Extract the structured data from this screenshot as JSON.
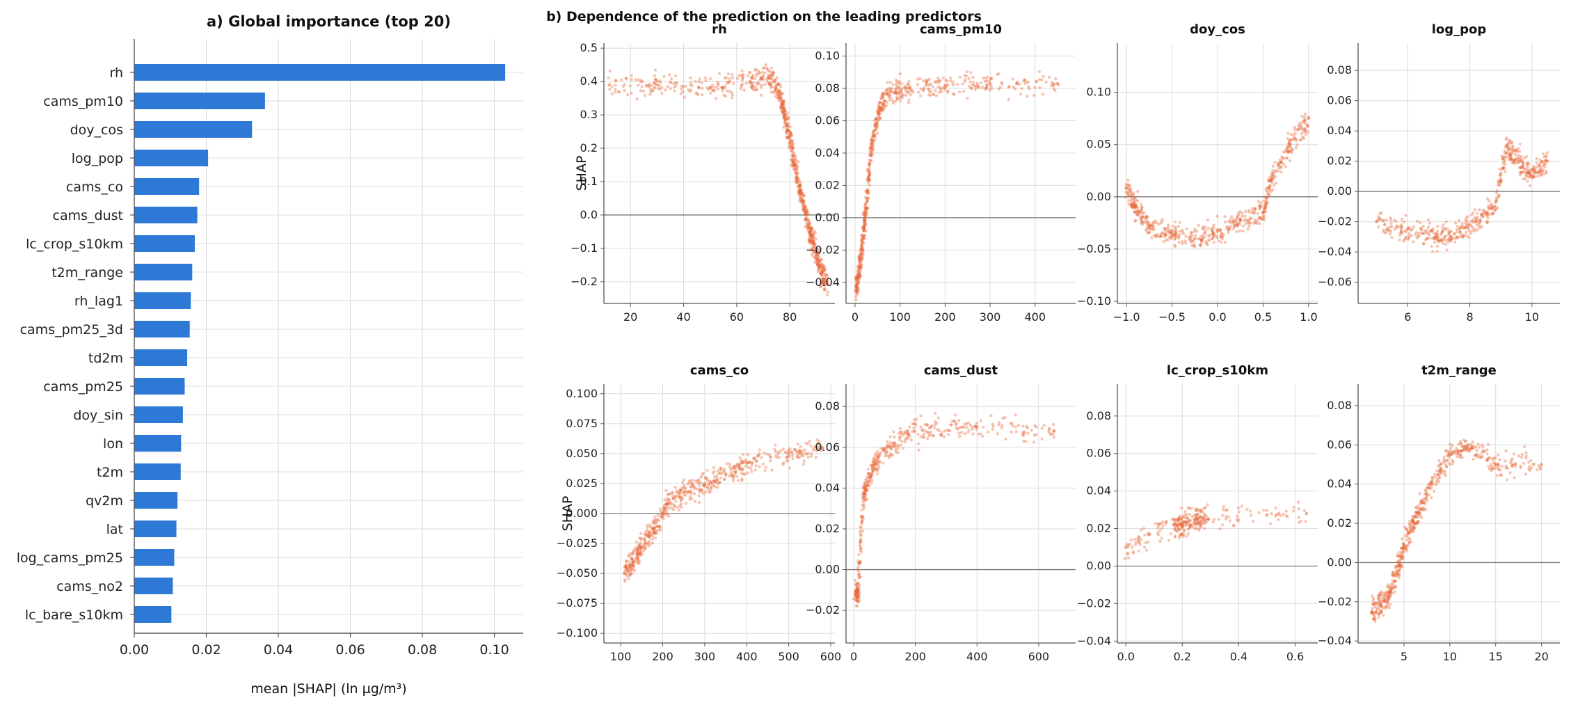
{
  "colors": {
    "bar": "#2e78d6",
    "scatter": "#e8683a",
    "grid": "#dcdcdc",
    "zero_line": "#777777",
    "spine": "#555555"
  },
  "chart_data": [
    {
      "id": "a",
      "type": "bar",
      "orientation": "horizontal",
      "title": "a) Global importance (top 20)",
      "xlabel": "mean |SHAP| (ln µg/m³)",
      "ylabel": "",
      "xlim": [
        0,
        0.108
      ],
      "xticks": [
        0.0,
        0.02,
        0.04,
        0.06,
        0.08,
        0.1
      ],
      "xtick_labels": [
        "0.00",
        "0.02",
        "0.04",
        "0.06",
        "0.08",
        "0.10"
      ],
      "grid": true,
      "categories": [
        "rh",
        "cams_pm10",
        "doy_cos",
        "log_pop",
        "cams_co",
        "cams_dust",
        "lc_crop_s10km",
        "t2m_range",
        "rh_lag1",
        "cams_pm25_3d",
        "td2m",
        "cams_pm25",
        "doy_sin",
        "lon",
        "t2m",
        "qv2m",
        "lat",
        "log_cams_pm25",
        "cams_no2",
        "lc_bare_s10km"
      ],
      "values": [
        0.103,
        0.0363,
        0.0327,
        0.0205,
        0.018,
        0.0175,
        0.0168,
        0.0161,
        0.0157,
        0.0154,
        0.0147,
        0.014,
        0.0135,
        0.013,
        0.0129,
        0.012,
        0.0117,
        0.0111,
        0.0107,
        0.0103
      ]
    },
    {
      "id": "b",
      "type": "scatter",
      "title": "b) Dependence of the prediction on the leading predictors",
      "ylabel": "SHAP",
      "grid": true,
      "subplots": [
        {
          "name": "rh",
          "xlim": [
            10,
            97
          ],
          "ylim": [
            -0.265,
            0.515
          ],
          "xticks": [
            20,
            40,
            60,
            80
          ],
          "xtick_labels": [
            "20",
            "40",
            "60",
            "80"
          ],
          "yticks": [
            -0.2,
            -0.1,
            0.0,
            0.1,
            0.2,
            0.3,
            0.4,
            0.5
          ],
          "ytick_labels": [
            "−0.2",
            "−0.1",
            "0.0",
            "0.1",
            "0.2",
            "0.3",
            "0.4",
            "0.5"
          ],
          "show_ylabel": true,
          "trend": [
            [
              12,
              0.39
            ],
            [
              30,
              0.39
            ],
            [
              50,
              0.38
            ],
            [
              65,
              0.4
            ],
            [
              72,
              0.41
            ],
            [
              76,
              0.37
            ],
            [
              78,
              0.3
            ],
            [
              80,
              0.23
            ],
            [
              82,
              0.15
            ],
            [
              84,
              0.07
            ],
            [
              86,
              0.0
            ],
            [
              88,
              -0.06
            ],
            [
              90,
              -0.12
            ],
            [
              92,
              -0.17
            ],
            [
              94,
              -0.2
            ]
          ]
        },
        {
          "name": "cams_pm10",
          "xlim": [
            -20,
            490
          ],
          "ylim": [
            -0.053,
            0.108
          ],
          "xticks": [
            0,
            100,
            200,
            300,
            400
          ],
          "xtick_labels": [
            "0",
            "100",
            "200",
            "300",
            "400"
          ],
          "yticks": [
            -0.04,
            -0.02,
            0.0,
            0.02,
            0.04,
            0.06,
            0.08,
            0.1
          ],
          "ytick_labels": [
            "−0.04",
            "−0.02",
            "0.00",
            "0.02",
            "0.04",
            "0.06",
            "0.08",
            "0.10"
          ],
          "show_ylabel": false,
          "trend": [
            [
              2,
              -0.045
            ],
            [
              8,
              -0.035
            ],
            [
              15,
              -0.02
            ],
            [
              22,
              0.0
            ],
            [
              30,
              0.025
            ],
            [
              40,
              0.05
            ],
            [
              55,
              0.068
            ],
            [
              80,
              0.078
            ],
            [
              120,
              0.08
            ],
            [
              200,
              0.082
            ],
            [
              300,
              0.083
            ],
            [
              450,
              0.083
            ]
          ]
        },
        {
          "name": "doy_cos",
          "xlim": [
            -1.1,
            1.1
          ],
          "ylim": [
            -0.102,
            0.147
          ],
          "xticks": [
            -1.0,
            -0.5,
            0.0,
            0.5,
            1.0
          ],
          "xtick_labels": [
            "−1.0",
            "−0.5",
            "0.0",
            "0.5",
            "1.0"
          ],
          "yticks": [
            -0.1,
            -0.05,
            0.0,
            0.05,
            0.1
          ],
          "ytick_labels": [
            "−0.10",
            "−0.05",
            "0.00",
            "0.05",
            "0.10"
          ],
          "show_ylabel": false,
          "trend": [
            [
              -1.0,
              0.008
            ],
            [
              -0.9,
              -0.01
            ],
            [
              -0.75,
              -0.028
            ],
            [
              -0.5,
              -0.035
            ],
            [
              -0.25,
              -0.04
            ],
            [
              0.0,
              -0.033
            ],
            [
              0.25,
              -0.022
            ],
            [
              0.5,
              -0.015
            ],
            [
              0.6,
              0.02
            ],
            [
              0.8,
              0.05
            ],
            [
              1.0,
              0.075
            ]
          ]
        },
        {
          "name": "log_pop",
          "xlim": [
            4.4,
            10.9
          ],
          "ylim": [
            -0.074,
            0.098
          ],
          "xticks": [
            6,
            8,
            10
          ],
          "xtick_labels": [
            "6",
            "8",
            "10"
          ],
          "yticks": [
            -0.06,
            -0.04,
            -0.02,
            0.0,
            0.02,
            0.04,
            0.06,
            0.08
          ],
          "ytick_labels": [
            "−0.06",
            "−0.04",
            "−0.02",
            "0.00",
            "0.02",
            "0.04",
            "0.06",
            "0.08"
          ],
          "show_ylabel": false,
          "trend": [
            [
              5.0,
              -0.02
            ],
            [
              6.0,
              -0.025
            ],
            [
              6.9,
              -0.03
            ],
            [
              7.5,
              -0.028
            ],
            [
              8.2,
              -0.02
            ],
            [
              8.8,
              -0.01
            ],
            [
              9.2,
              0.03
            ],
            [
              9.6,
              0.02
            ],
            [
              10.0,
              0.01
            ],
            [
              10.5,
              0.02
            ]
          ]
        },
        {
          "name": "cams_co",
          "xlim": [
            60,
            610
          ],
          "ylim": [
            -0.108,
            0.108
          ],
          "xticks": [
            100,
            200,
            300,
            400,
            500,
            600
          ],
          "xtick_labels": [
            "100",
            "200",
            "300",
            "400",
            "500",
            "600"
          ],
          "yticks": [
            -0.1,
            -0.075,
            -0.05,
            -0.025,
            0.0,
            0.025,
            0.05,
            0.075,
            0.1
          ],
          "ytick_labels": [
            "−0.100",
            "−0.075",
            "−0.050",
            "−0.025",
            "0.000",
            "0.025",
            "0.050",
            "0.075",
            "0.100"
          ],
          "show_ylabel": true,
          "trend": [
            [
              110,
              -0.05
            ],
            [
              130,
              -0.04
            ],
            [
              150,
              -0.028
            ],
            [
              180,
              -0.012
            ],
            [
              210,
              0.008
            ],
            [
              250,
              0.018
            ],
            [
              300,
              0.025
            ],
            [
              350,
              0.033
            ],
            [
              400,
              0.042
            ],
            [
              500,
              0.05
            ],
            [
              580,
              0.055
            ]
          ]
        },
        {
          "name": "cams_dust",
          "xlim": [
            -25,
            720
          ],
          "ylim": [
            -0.036,
            0.091
          ],
          "xticks": [
            0,
            200,
            400,
            600
          ],
          "xtick_labels": [
            "0",
            "200",
            "400",
            "600"
          ],
          "yticks": [
            -0.02,
            0.0,
            0.02,
            0.04,
            0.06,
            0.08
          ],
          "ytick_labels": [
            "−0.02",
            "0.00",
            "0.02",
            "0.04",
            "0.06",
            "0.08"
          ],
          "show_ylabel": false,
          "trend": [
            [
              5,
              -0.012
            ],
            [
              15,
              -0.01
            ],
            [
              30,
              0.035
            ],
            [
              50,
              0.045
            ],
            [
              80,
              0.055
            ],
            [
              150,
              0.065
            ],
            [
              250,
              0.07
            ],
            [
              400,
              0.07
            ],
            [
              650,
              0.068
            ]
          ]
        },
        {
          "name": "lc_crop_s10km",
          "xlim": [
            -0.03,
            0.68
          ],
          "ylim": [
            -0.041,
            0.097
          ],
          "xticks": [
            0.0,
            0.2,
            0.4,
            0.6
          ],
          "xtick_labels": [
            "0.0",
            "0.2",
            "0.4",
            "0.6"
          ],
          "yticks": [
            -0.04,
            -0.02,
            0.0,
            0.02,
            0.04,
            0.06,
            0.08
          ],
          "ytick_labels": [
            "−0.04",
            "−0.02",
            "0.00",
            "0.02",
            "0.04",
            "0.06",
            "0.08"
          ],
          "show_ylabel": false,
          "trend": [
            [
              0.0,
              0.01
            ],
            [
              0.17,
              0.022
            ],
            [
              0.2,
              0.022
            ],
            [
              0.25,
              0.025
            ],
            [
              0.29,
              0.025
            ],
            [
              0.64,
              0.028
            ]
          ]
        },
        {
          "name": "t2m_range",
          "xlim": [
            0.0,
            22.0
          ],
          "ylim": [
            -0.041,
            0.091
          ],
          "xticks": [
            5,
            10,
            15,
            20
          ],
          "xtick_labels": [
            "5",
            "10",
            "15",
            "20"
          ],
          "yticks": [
            -0.04,
            -0.02,
            0.0,
            0.02,
            0.04,
            0.06,
            0.08
          ],
          "ytick_labels": [
            "−0.04",
            "−0.02",
            "0.00",
            "0.02",
            "0.04",
            "0.06",
            "0.08"
          ],
          "show_ylabel": false,
          "trend": [
            [
              1.5,
              -0.025
            ],
            [
              2.5,
              -0.022
            ],
            [
              3.5,
              -0.015
            ],
            [
              4.5,
              0.0
            ],
            [
              5.5,
              0.015
            ],
            [
              6.5,
              0.025
            ],
            [
              8.0,
              0.04
            ],
            [
              10.0,
              0.055
            ],
            [
              12.0,
              0.06
            ],
            [
              15.0,
              0.05
            ],
            [
              20.0,
              0.05
            ]
          ]
        }
      ]
    }
  ]
}
